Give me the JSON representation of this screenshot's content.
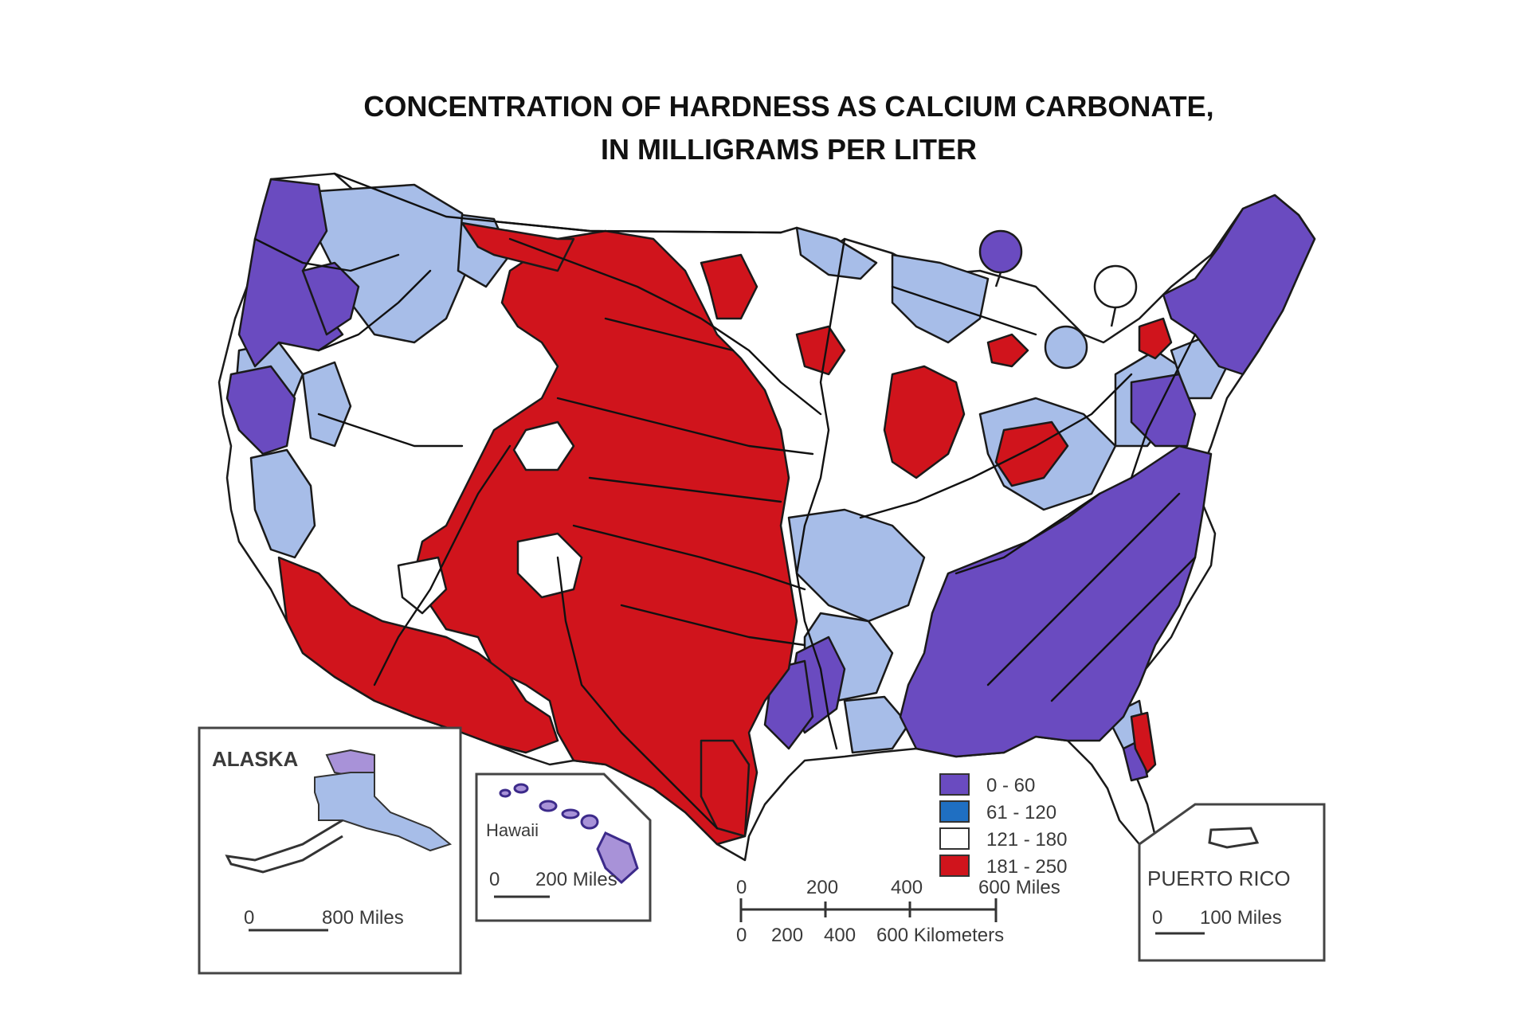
{
  "title": {
    "line1": "CONCENTRATION OF HARDNESS AS CALCIUM CARBONATE,",
    "line2": "IN MILLIGRAMS PER LITER"
  },
  "colors": {
    "range_0_60": "#6a4bc0",
    "range_61_120": "#1f6fc2",
    "range_121_180": "#ffffff",
    "range_181_250": "#d0141c",
    "light_blue_regions": "#a7bde8",
    "boundary": "#111111"
  },
  "legend": {
    "items": [
      {
        "label": "0 - 60",
        "color": "#6a4bc0"
      },
      {
        "label": "61 - 120",
        "color": "#1f6fc2"
      },
      {
        "label": "121 - 180",
        "color": "#ffffff"
      },
      {
        "label": "181 - 250",
        "color": "#d0141c"
      }
    ]
  },
  "scale_bar": {
    "miles_ticks": [
      "0",
      "200",
      "400",
      "600 Miles"
    ],
    "km_ticks": [
      "0",
      "200",
      "400",
      "600 Kilometers"
    ]
  },
  "insets": {
    "alaska": {
      "label": "ALASKA",
      "scale_zero": "0",
      "scale_label": "800 Miles"
    },
    "hawaii": {
      "label": "Hawaii",
      "scale_zero": "0",
      "scale_label": "200 Miles"
    },
    "puerto_rico": {
      "label": "PUERTO RICO",
      "scale_zero": "0",
      "scale_label": "100 Miles"
    }
  }
}
